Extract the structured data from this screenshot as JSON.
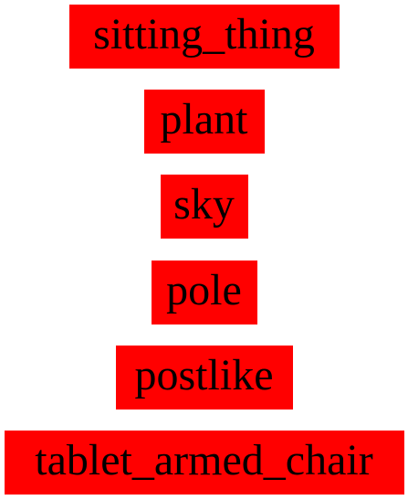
{
  "labels": [
    "sitting_thing",
    "plant",
    "sky",
    "pole",
    "postlike",
    "tablet_armed_chair"
  ],
  "colors": {
    "label_background": "#ff0000",
    "label_text": "#000000",
    "page_background": "#ffffff"
  }
}
